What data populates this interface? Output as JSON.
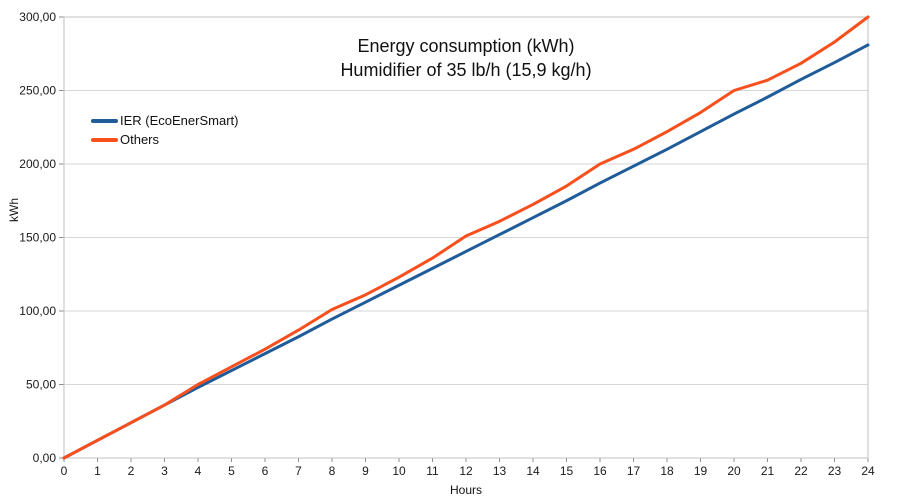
{
  "chart_data": {
    "type": "line",
    "title": "Energy consumption (kWh)",
    "subtitle": "Humidifier of 35 lb/h (15,9 kg/h)",
    "xlabel": "Hours",
    "ylabel": "kWh",
    "xlim": [
      0,
      24
    ],
    "ylim": [
      0,
      300
    ],
    "grid": "horizontal",
    "legend_position": "top-left-inside",
    "x": [
      0,
      1,
      2,
      3,
      4,
      5,
      6,
      7,
      8,
      9,
      10,
      11,
      12,
      13,
      14,
      15,
      16,
      17,
      18,
      19,
      20,
      21,
      22,
      23,
      24
    ],
    "xtick_labels": [
      "0",
      "1",
      "2",
      "3",
      "4",
      "5",
      "6",
      "7",
      "8",
      "9",
      "10",
      "11",
      "12",
      "13",
      "14",
      "15",
      "16",
      "17",
      "18",
      "19",
      "20",
      "21",
      "22",
      "23",
      "24"
    ],
    "ytick_values": [
      0,
      50,
      100,
      150,
      200,
      250,
      300
    ],
    "ytick_labels": [
      "0,00",
      "50,00",
      "100,00",
      "150,00",
      "200,00",
      "250,00",
      "300,00"
    ],
    "series": [
      {
        "name": "IER (EcoEnerSmart)",
        "color": "#1F5C99",
        "values": [
          0,
          12,
          24,
          36,
          48,
          59.5,
          71,
          82.5,
          94.5,
          106,
          117.5,
          129,
          140.5,
          152,
          163.5,
          175,
          187,
          198.5,
          210,
          222,
          234,
          245.5,
          257.5,
          269,
          281
        ]
      },
      {
        "name": "Others",
        "color": "#F94F1C",
        "values": [
          0,
          12,
          24,
          36,
          50,
          62,
          74,
          87,
          101,
          111,
          123,
          136,
          151,
          161,
          172.5,
          185,
          200,
          210,
          222,
          235,
          250,
          257,
          268.5,
          283,
          300
        ]
      }
    ]
  },
  "colors": {
    "background": "#FFFFFF",
    "grid": "#D6D6D6",
    "axis_border": "#C2C2C2",
    "tick": "#8E8E8E",
    "text": "#1A1A1A"
  }
}
